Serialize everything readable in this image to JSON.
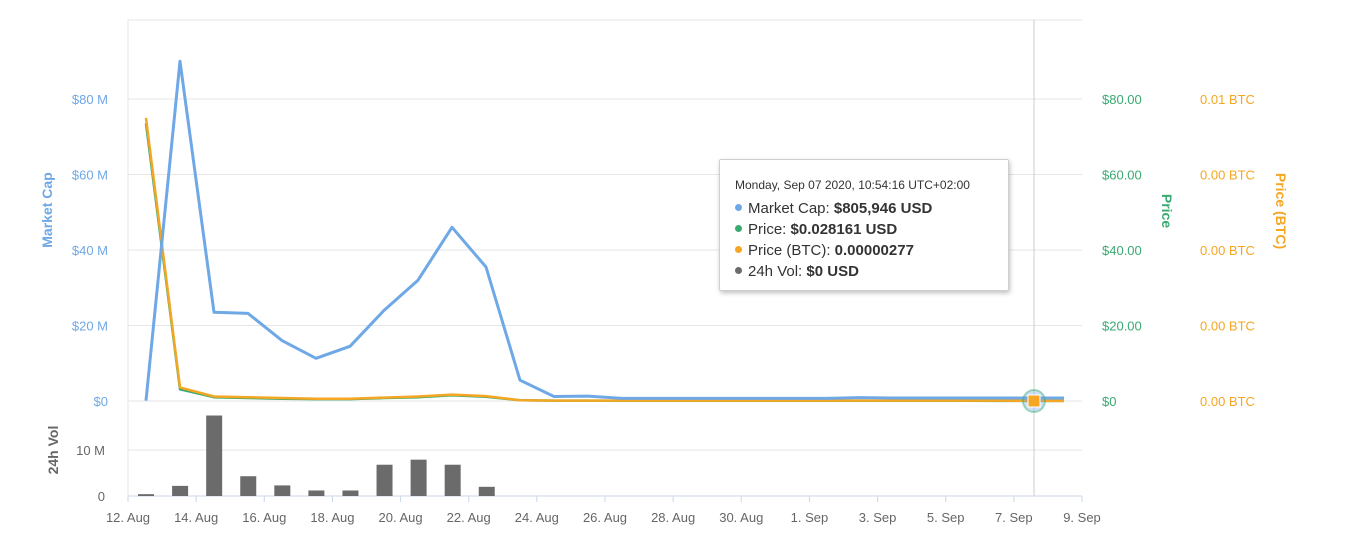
{
  "colors": {
    "market_cap": "#6fa8e6",
    "price": "#3aaa72",
    "price_btc": "#f5a623",
    "volume": "#6b6b6b",
    "grid": "#e6e6e6",
    "axis_tick": "#666666"
  },
  "tooltip": {
    "title": "Monday, Sep 07 2020, 10:54:16 UTC+02:00",
    "rows": [
      {
        "label": "Market Cap: ",
        "value": "$805,946 USD",
        "color": "#6fa8e6"
      },
      {
        "label": "Price: ",
        "value": "$0.028161 USD",
        "color": "#3aaa72"
      },
      {
        "label": "Price (BTC): ",
        "value": "0.00000277",
        "color": "#f5a623"
      },
      {
        "label": "24h Vol: ",
        "value": "$0 USD",
        "color": "#6b6b6b"
      }
    ]
  },
  "chart_data": {
    "type": "line",
    "x_unit": "date",
    "x_ticks": [
      "12. Aug",
      "14. Aug",
      "16. Aug",
      "18. Aug",
      "20. Aug",
      "22. Aug",
      "24. Aug",
      "26. Aug",
      "28. Aug",
      "30. Aug",
      "1. Sep",
      "3. Sep",
      "5. Sep",
      "7. Sep",
      "9. Sep"
    ],
    "x": [
      "2020-08-12",
      "2020-08-13",
      "2020-08-14",
      "2020-08-15",
      "2020-08-16",
      "2020-08-17",
      "2020-08-18",
      "2020-08-19",
      "2020-08-20",
      "2020-08-21",
      "2020-08-22",
      "2020-08-23",
      "2020-08-24",
      "2020-08-25",
      "2020-08-26",
      "2020-08-27",
      "2020-08-28",
      "2020-08-29",
      "2020-08-30",
      "2020-08-31",
      "2020-09-01",
      "2020-09-02",
      "2020-09-03",
      "2020-09-04",
      "2020-09-05",
      "2020-09-06",
      "2020-09-07",
      "2020-09-08"
    ],
    "series": [
      {
        "name": "Market Cap",
        "axis": "left",
        "values": [
          0.1,
          90,
          23.5,
          23.2,
          16,
          11.3,
          14.5,
          24,
          32,
          46,
          35.5,
          5.5,
          1.2,
          1.3,
          0.7,
          0.7,
          0.7,
          0.7,
          0.7,
          0.7,
          0.7,
          0.9,
          0.8,
          0.8,
          0.8,
          0.8,
          0.8,
          0.8
        ]
      },
      {
        "name": "Price",
        "axis": "right_price",
        "values": [
          73.5,
          3.1,
          1.0,
          0.8,
          0.6,
          0.5,
          0.5,
          0.8,
          1.0,
          1.5,
          1.1,
          0.2,
          0.1,
          0.1,
          0.05,
          0.05,
          0.05,
          0.05,
          0.05,
          0.05,
          0.05,
          0.05,
          0.05,
          0.05,
          0.05,
          0.03,
          0.03,
          0.03
        ]
      },
      {
        "name": "Price (BTC)",
        "axis": "right_btc",
        "values": [
          0.0075,
          0.00036,
          0.00012,
          0.0001,
          8e-05,
          6e-05,
          6e-05,
          9e-05,
          0.00012,
          0.00017,
          0.00013,
          2e-05,
          1e-05,
          1e-05,
          1e-05,
          1e-05,
          1e-05,
          1e-05,
          1e-05,
          1e-05,
          1e-05,
          1e-05,
          1e-05,
          1e-05,
          1e-05,
          1e-05,
          2.77e-06,
          2.77e-06
        ]
      }
    ],
    "volume": {
      "name": "24h Vol",
      "x": [
        "2020-08-12",
        "2020-08-13",
        "2020-08-14",
        "2020-08-15",
        "2020-08-16",
        "2020-08-17",
        "2020-08-18",
        "2020-08-19",
        "2020-08-20",
        "2020-08-21",
        "2020-08-22"
      ],
      "values": [
        0.4,
        2.2,
        17.5,
        4.3,
        2.3,
        1.2,
        1.2,
        6.8,
        7.9,
        6.8,
        2.0
      ]
    },
    "axes": {
      "left": {
        "title": "Market Cap",
        "ylim": [
          0,
          90
        ],
        "ticks": [
          0,
          20,
          40,
          60,
          80
        ],
        "labels": [
          "$0",
          "$20 M",
          "$40 M",
          "$60 M",
          "$80 M"
        ]
      },
      "right_price": {
        "title": "Price",
        "ylim": [
          0,
          90
        ],
        "ticks": [
          0,
          20,
          40,
          60,
          80
        ],
        "labels": [
          "$0",
          "$20.00",
          "$40.00",
          "$60.00",
          "$80.00"
        ]
      },
      "right_btc": {
        "title": "Price (BTC)",
        "ylim": [
          0,
          0.009
        ],
        "ticks": [
          0,
          0.002,
          0.004,
          0.006,
          0.008
        ],
        "labels": [
          "0.00 BTC",
          "0.00 BTC",
          "0.00 BTC",
          "0.00 BTC",
          "0.01 BTC"
        ]
      },
      "volume": {
        "title": "24h Vol",
        "ylim": [
          0,
          20
        ],
        "ticks": [
          0,
          10
        ],
        "labels": [
          "0",
          "10 M"
        ]
      }
    },
    "crosshair_x": "2020-09-07",
    "grid": true,
    "legend": "none"
  }
}
